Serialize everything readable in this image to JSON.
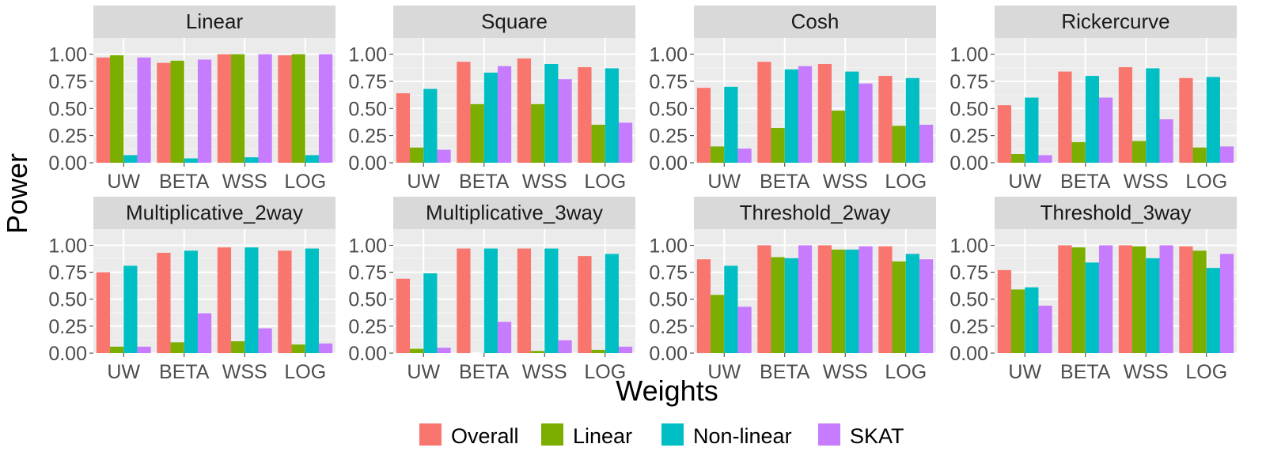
{
  "figure": {
    "ylabel": "Power",
    "xlabel": "Weights"
  },
  "legend": {
    "position": "bottom",
    "items": [
      {
        "label": "Overall",
        "color": "#F8766D"
      },
      {
        "label": "Linear",
        "color": "#7CAE00"
      },
      {
        "label": "Non-linear",
        "color": "#00BFC4"
      },
      {
        "label": "SKAT",
        "color": "#C77CFF"
      }
    ]
  },
  "chart_data": [
    {
      "type": "bar",
      "title": "Linear",
      "categories": [
        "UW",
        "BETA",
        "WSS",
        "LOG"
      ],
      "ylim": [
        0,
        1.15
      ],
      "yticks": [
        "0.00",
        "0.25",
        "0.50",
        "0.75",
        "1.00"
      ],
      "grid": true,
      "series": [
        {
          "name": "Overall",
          "values": [
            0.97,
            0.92,
            1.0,
            0.99
          ]
        },
        {
          "name": "Linear",
          "values": [
            0.99,
            0.94,
            1.0,
            1.0
          ]
        },
        {
          "name": "Non-linear",
          "values": [
            0.07,
            0.04,
            0.05,
            0.07
          ]
        },
        {
          "name": "SKAT",
          "values": [
            0.97,
            0.95,
            1.0,
            1.0
          ]
        }
      ]
    },
    {
      "type": "bar",
      "title": "Square",
      "categories": [
        "UW",
        "BETA",
        "WSS",
        "LOG"
      ],
      "ylim": [
        0,
        1.15
      ],
      "yticks": [
        "0.00",
        "0.25",
        "0.50",
        "0.75",
        "1.00"
      ],
      "grid": true,
      "series": [
        {
          "name": "Overall",
          "values": [
            0.64,
            0.93,
            0.96,
            0.88
          ]
        },
        {
          "name": "Linear",
          "values": [
            0.14,
            0.54,
            0.54,
            0.35
          ]
        },
        {
          "name": "Non-linear",
          "values": [
            0.68,
            0.83,
            0.91,
            0.87
          ]
        },
        {
          "name": "SKAT",
          "values": [
            0.12,
            0.89,
            0.77,
            0.37
          ]
        }
      ]
    },
    {
      "type": "bar",
      "title": "Cosh",
      "categories": [
        "UW",
        "BETA",
        "WSS",
        "LOG"
      ],
      "ylim": [
        0,
        1.15
      ],
      "yticks": [
        "0.00",
        "0.25",
        "0.50",
        "0.75",
        "1.00"
      ],
      "grid": true,
      "series": [
        {
          "name": "Overall",
          "values": [
            0.69,
            0.93,
            0.91,
            0.8
          ]
        },
        {
          "name": "Linear",
          "values": [
            0.15,
            0.32,
            0.48,
            0.34
          ]
        },
        {
          "name": "Non-linear",
          "values": [
            0.7,
            0.86,
            0.84,
            0.78
          ]
        },
        {
          "name": "SKAT",
          "values": [
            0.13,
            0.89,
            0.73,
            0.35
          ]
        }
      ]
    },
    {
      "type": "bar",
      "title": "Rickercurve",
      "categories": [
        "UW",
        "BETA",
        "WSS",
        "LOG"
      ],
      "ylim": [
        0,
        1.15
      ],
      "yticks": [
        "0.00",
        "0.25",
        "0.50",
        "0.75",
        "1.00"
      ],
      "grid": true,
      "series": [
        {
          "name": "Overall",
          "values": [
            0.53,
            0.84,
            0.88,
            0.78
          ]
        },
        {
          "name": "Linear",
          "values": [
            0.08,
            0.19,
            0.2,
            0.14
          ]
        },
        {
          "name": "Non-linear",
          "values": [
            0.6,
            0.8,
            0.87,
            0.79
          ]
        },
        {
          "name": "SKAT",
          "values": [
            0.07,
            0.6,
            0.4,
            0.15
          ]
        }
      ]
    },
    {
      "type": "bar",
      "title": "Multiplicative_2way",
      "categories": [
        "UW",
        "BETA",
        "WSS",
        "LOG"
      ],
      "ylim": [
        0,
        1.15
      ],
      "yticks": [
        "0.00",
        "0.25",
        "0.50",
        "0.75",
        "1.00"
      ],
      "grid": true,
      "series": [
        {
          "name": "Overall",
          "values": [
            0.75,
            0.93,
            0.98,
            0.95
          ]
        },
        {
          "name": "Linear",
          "values": [
            0.06,
            0.1,
            0.11,
            0.08
          ]
        },
        {
          "name": "Non-linear",
          "values": [
            0.81,
            0.95,
            0.98,
            0.97
          ]
        },
        {
          "name": "SKAT",
          "values": [
            0.06,
            0.37,
            0.23,
            0.09
          ]
        }
      ]
    },
    {
      "type": "bar",
      "title": "Multiplicative_3way",
      "categories": [
        "UW",
        "BETA",
        "WSS",
        "LOG"
      ],
      "ylim": [
        0,
        1.15
      ],
      "yticks": [
        "0.00",
        "0.25",
        "0.50",
        "0.75",
        "1.00"
      ],
      "grid": true,
      "series": [
        {
          "name": "Overall",
          "values": [
            0.69,
            0.97,
            0.97,
            0.9
          ]
        },
        {
          "name": "Linear",
          "values": [
            0.04,
            0.0,
            0.02,
            0.03
          ]
        },
        {
          "name": "Non-linear",
          "values": [
            0.74,
            0.97,
            0.97,
            0.92
          ]
        },
        {
          "name": "SKAT",
          "values": [
            0.05,
            0.29,
            0.12,
            0.06
          ]
        }
      ]
    },
    {
      "type": "bar",
      "title": "Threshold_2way",
      "categories": [
        "UW",
        "BETA",
        "WSS",
        "LOG"
      ],
      "ylim": [
        0,
        1.15
      ],
      "yticks": [
        "0.00",
        "0.25",
        "0.50",
        "0.75",
        "1.00"
      ],
      "grid": true,
      "series": [
        {
          "name": "Overall",
          "values": [
            0.87,
            1.0,
            1.0,
            0.99
          ]
        },
        {
          "name": "Linear",
          "values": [
            0.54,
            0.89,
            0.96,
            0.85
          ]
        },
        {
          "name": "Non-linear",
          "values": [
            0.81,
            0.88,
            0.96,
            0.92
          ]
        },
        {
          "name": "SKAT",
          "values": [
            0.43,
            1.0,
            0.99,
            0.87
          ]
        }
      ]
    },
    {
      "type": "bar",
      "title": "Threshold_3way",
      "categories": [
        "UW",
        "BETA",
        "WSS",
        "LOG"
      ],
      "ylim": [
        0,
        1.15
      ],
      "yticks": [
        "0.00",
        "0.25",
        "0.50",
        "0.75",
        "1.00"
      ],
      "grid": true,
      "series": [
        {
          "name": "Overall",
          "values": [
            0.77,
            1.0,
            1.0,
            0.99
          ]
        },
        {
          "name": "Linear",
          "values": [
            0.59,
            0.98,
            0.99,
            0.95
          ]
        },
        {
          "name": "Non-linear",
          "values": [
            0.61,
            0.84,
            0.88,
            0.79
          ]
        },
        {
          "name": "SKAT",
          "values": [
            0.44,
            1.0,
            1.0,
            0.92
          ]
        }
      ]
    }
  ]
}
